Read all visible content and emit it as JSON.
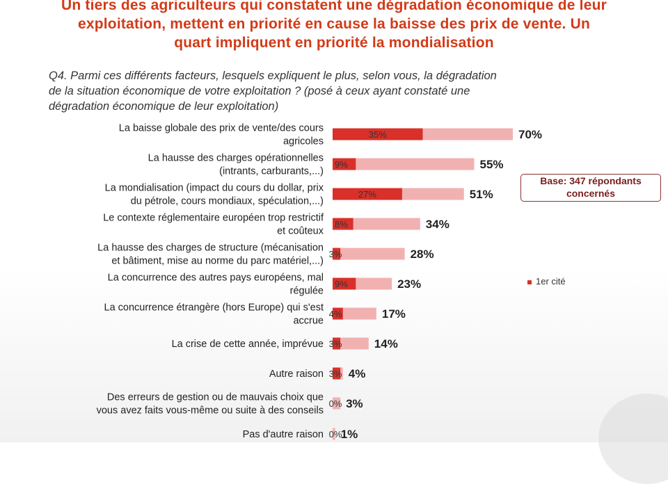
{
  "headline": "Un tiers des agriculteurs qui constatent une dégradation économique de leur\nexploitation, mettent en priorité en cause la baisse des prix de vente. Un\nquart impliquent en priorité la mondialisation",
  "question": "Q4. Parmi ces différents facteurs, lesquels expliquent le plus, selon vous, la dégradation\nde la situation économique de votre exploitation ? (posé à ceux ayant constaté une\ndégradation économique de leur exploitation)",
  "base_note": "Base: 347 répondants\nconcernés",
  "legend": {
    "first_cited": "1er cité"
  },
  "colors": {
    "first_cited": "#d9302a",
    "total": "#f2b1b1",
    "headline": "#d23a17"
  },
  "chart_data": {
    "type": "bar",
    "orientation": "horizontal",
    "stacked_overlay": true,
    "categories": [
      [
        "La baisse globale des prix de vente/des cours",
        "agricoles"
      ],
      [
        "La hausse des charges opérationnelles",
        "(intrants, carburants,...)"
      ],
      [
        "La mondialisation (impact du cours du dollar, prix",
        "du pétrole, cours mondiaux, spéculation,...)"
      ],
      [
        "Le contexte réglementaire européen trop restrictif",
        "et coûteux"
      ],
      [
        "La hausse des charges de structure (mécanisation",
        "et bâtiment, mise au norme du parc matériel,...)"
      ],
      [
        "La concurrence des autres pays européens, mal",
        "régulée"
      ],
      [
        "La concurrence étrangère (hors Europe) qui s'est",
        "accrue"
      ],
      [
        "La crise de cette année, imprévue"
      ],
      [
        "Autre raison"
      ],
      [
        "Des erreurs de gestion ou de mauvais choix que",
        "vous avez faits vous-même ou suite à des conseils"
      ],
      [
        "Pas d'autre raison"
      ]
    ],
    "series": [
      {
        "name": "1er cité",
        "values": [
          35,
          9,
          27,
          8,
          3,
          9,
          4,
          3,
          3,
          0,
          0
        ]
      },
      {
        "values": [
          70,
          55,
          51,
          34,
          28,
          23,
          17,
          14,
          4,
          3,
          1
        ]
      }
    ],
    "value_labels_first": [
      "35%",
      "9%",
      "27%",
      "8%",
      "3%",
      "9%",
      "4%",
      "3%",
      "3%",
      "0%",
      "0%"
    ],
    "value_labels_total": [
      "70%",
      "55%",
      "51%",
      "34%",
      "28%",
      "23%",
      "17%",
      "14%",
      "4%",
      "3%",
      "1%"
    ],
    "xlim": [
      0,
      100
    ],
    "legend_position": "right"
  }
}
